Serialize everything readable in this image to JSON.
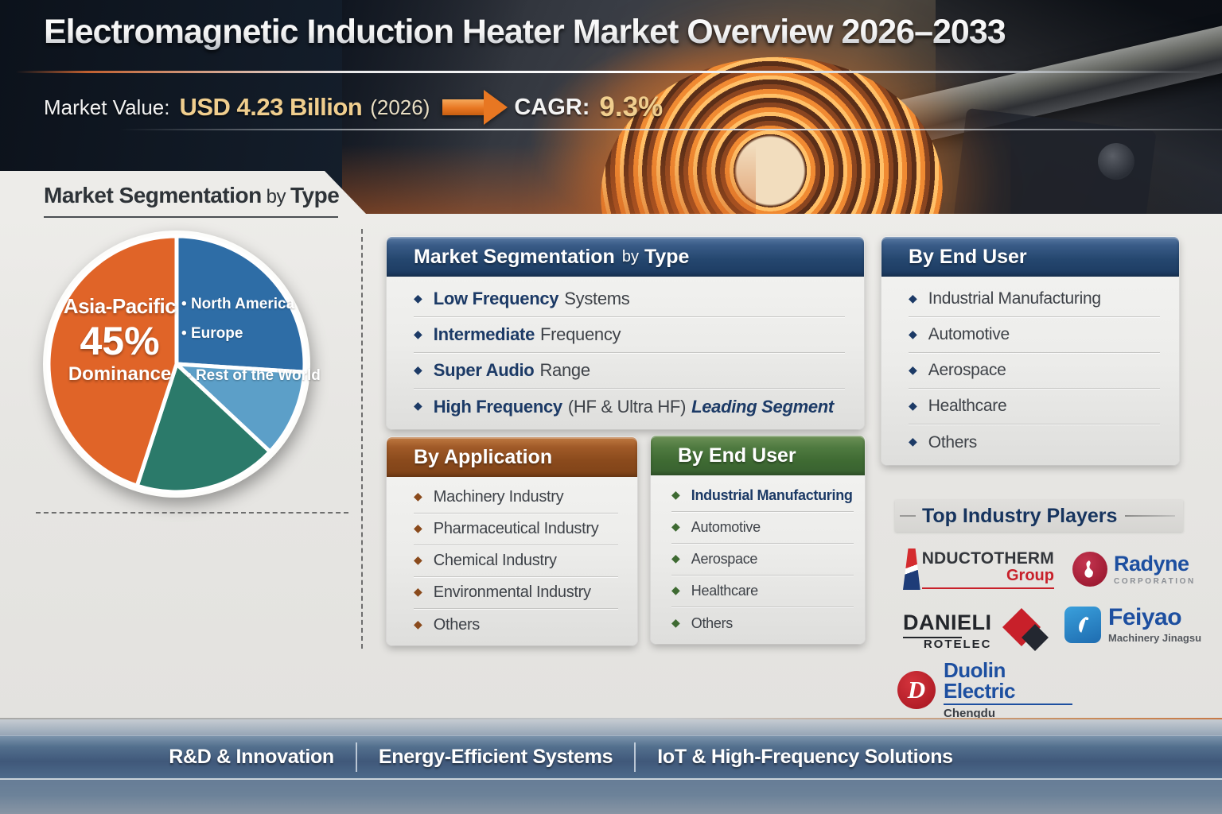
{
  "header": {
    "title": "Electromagnetic Induction Heater Market Overview 2026–2033",
    "market_value_label": "Market Value:",
    "market_value": "USD 4.23 Billion",
    "market_value_year": "(2026)",
    "cagr_label": "CAGR:",
    "cagr_value": "9.3%",
    "gold_color": "#F0CE8E",
    "arrow_color": "#E87722"
  },
  "left_panel": {
    "title_strong": "Market Segmentation",
    "title_by": "by",
    "title_type": "Type"
  },
  "chart_data": {
    "type": "pie",
    "title": "Market Segmentation by Type",
    "slices": [
      {
        "label": "North America / Europe",
        "value": 26,
        "color": "#2E6DA6"
      },
      {
        "label": "Rest of the World",
        "value": 11,
        "color": "#5C9FC8"
      },
      {
        "label": "",
        "value": 18,
        "color": "#2B7A6A"
      },
      {
        "label": "Asia-Pacific",
        "value": 45,
        "color": "#E06428"
      }
    ],
    "center_label": {
      "region": "Asia-Pacific",
      "value": "45%",
      "caption": "Dominance"
    },
    "legend_blue": [
      "North America",
      "Europe"
    ],
    "legend_light_blue": [
      "Rest of the World"
    ],
    "legend_position": "inside-slices",
    "grid": false
  },
  "panel_type": {
    "title_strong": "Market Segmentation",
    "title_by": "by",
    "title_type": "Type",
    "items": [
      {
        "strong": "Low Frequency",
        "rest": "Systems",
        "italic": ""
      },
      {
        "strong": "Intermediate",
        "rest": "Frequency",
        "italic": ""
      },
      {
        "strong": "Super Audio",
        "rest": "Range",
        "italic": ""
      },
      {
        "strong": "High Frequency",
        "rest": "(HF & Ultra HF)",
        "italic": "Leading Segment"
      }
    ]
  },
  "panel_application": {
    "title": "By Application",
    "items": [
      {
        "strong": "",
        "rest": "Machinery Industry",
        "italic": ""
      },
      {
        "strong": "",
        "rest": "Pharmaceutical Industry",
        "italic": ""
      },
      {
        "strong": "",
        "rest": "Chemical Industry",
        "italic": ""
      },
      {
        "strong": "",
        "rest": "Environmental Industry",
        "italic": ""
      },
      {
        "strong": "",
        "rest": "Others",
        "italic": ""
      }
    ]
  },
  "panel_enduser_mid": {
    "title": "By End User",
    "items": [
      {
        "strong": "Industrial Manufacturing",
        "rest": "",
        "italic": ""
      },
      {
        "strong": "",
        "rest": "Automotive",
        "italic": ""
      },
      {
        "strong": "",
        "rest": "Aerospace",
        "italic": ""
      },
      {
        "strong": "",
        "rest": "Healthcare",
        "italic": ""
      },
      {
        "strong": "",
        "rest": "Others",
        "italic": ""
      }
    ]
  },
  "panel_enduser_right": {
    "title": "By End User",
    "items": [
      {
        "strong": "",
        "rest": "Industrial Manufacturing",
        "italic": ""
      },
      {
        "strong": "",
        "rest": "Automotive",
        "italic": ""
      },
      {
        "strong": "",
        "rest": "Aerospace",
        "italic": ""
      },
      {
        "strong": "",
        "rest": "Healthcare",
        "italic": ""
      },
      {
        "strong": "",
        "rest": "Others",
        "italic": ""
      }
    ]
  },
  "players": {
    "title": "Top Industry Players",
    "logos": {
      "inductotherm": {
        "name": "NDUCTOTHERM",
        "sub": "Group"
      },
      "radyne": {
        "name": "Radyne",
        "sub": "CORPORATION"
      },
      "danieli": {
        "name": "DANIELI",
        "sub": "ROTELEC"
      },
      "feiyao": {
        "name": "Feiyao",
        "sub": "Machinery Jinagsu"
      },
      "duolin": {
        "name": "Duolin Electric",
        "sub": "Chengdu"
      }
    }
  },
  "footer": {
    "items": [
      "R&D & Innovation",
      "Energy-Efficient Systems",
      "IoT & High-Frequency Solutions"
    ]
  }
}
